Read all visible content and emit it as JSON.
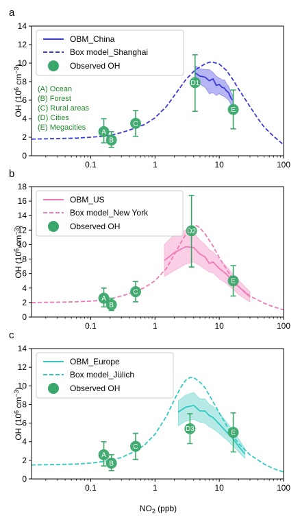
{
  "colors": {
    "china": "#3a3adc",
    "china_fill": "#9d9df0",
    "us": "#f07ab8",
    "us_fill": "#f8bedb",
    "europe": "#2ec9c1",
    "europe_fill": "#9fe3df",
    "obs": "#3aa86a",
    "ann_green": "#1e8a28"
  },
  "xlabel_main": "NO",
  "xlabel_sub": "2",
  "xlabel_unit": " (ppb)",
  "ylabel_main": "OH (10",
  "ylabel_exp1": "6",
  "ylabel_mid": " cm",
  "ylabel_exp2": "−3",
  "ylabel_end": ")",
  "chart_data": [
    {
      "type": "line",
      "panel": "a",
      "xscale": "log",
      "xlim": [
        0.012,
        100
      ],
      "ylim": [
        0,
        14
      ],
      "yticks": [
        0,
        2,
        4,
        6,
        8,
        10,
        12,
        14
      ],
      "xticks": [
        0.1,
        1,
        10,
        100
      ],
      "xtick_labels": [
        "0.1",
        "1",
        "10",
        "100"
      ],
      "legend": {
        "placement": "top-left",
        "entries": [
          "OBM_China",
          "Box model_Shanghai",
          "Observed OH"
        ]
      },
      "annotation_lines": [
        "(A) Ocean",
        "(B) Forest",
        "(C) Rural areas",
        "(D) Cities",
        "(E) Megacities"
      ],
      "obm": {
        "name": "OBM_China",
        "x": [
          4.3,
          5,
          6,
          7,
          8,
          9,
          10,
          11,
          12,
          13,
          14,
          15,
          16
        ],
        "y": [
          8.9,
          8.6,
          8.5,
          8.1,
          8.3,
          7.6,
          7.7,
          7.4,
          7.3,
          7.0,
          6.8,
          6.3,
          6.0
        ],
        "y_low": [
          8.1,
          7.7,
          7.4,
          6.7,
          6.8,
          6.5,
          6.7,
          6.5,
          6.4,
          6.2,
          6.0,
          5.6,
          5.4
        ],
        "y_high": [
          9.7,
          9.4,
          9.3,
          9.3,
          9.0,
          8.6,
          8.4,
          8.2,
          8.2,
          7.8,
          7.5,
          7.0,
          6.6
        ]
      },
      "box_model": {
        "name": "Box model_Shanghai",
        "x": [
          0.012,
          0.03,
          0.06,
          0.1,
          0.15,
          0.2,
          0.3,
          0.5,
          0.7,
          1,
          1.5,
          2,
          3,
          4,
          5,
          6,
          7,
          8,
          10,
          13,
          16,
          20,
          30,
          40,
          50,
          70,
          100
        ],
        "y": [
          1.8,
          1.85,
          1.9,
          2.0,
          2.1,
          2.2,
          2.5,
          3.0,
          3.4,
          4.1,
          5.3,
          6.5,
          8.2,
          9.1,
          9.6,
          9.9,
          10.1,
          10.1,
          9.9,
          9.2,
          8.3,
          7.2,
          5.3,
          4.0,
          3.1,
          2.1,
          1.2
        ]
      },
      "observed": [
        {
          "label": "A",
          "x": 0.16,
          "y": 2.6,
          "err_low": 1.4,
          "err_high": 4.0
        },
        {
          "label": "B",
          "x": 0.21,
          "y": 1.7,
          "err_low": 0.9,
          "err_high": 2.6
        },
        {
          "label": "C",
          "x": 0.5,
          "y": 3.5,
          "err_low": 2.1,
          "err_high": 4.9
        },
        {
          "label": "D1",
          "x": 4.2,
          "y": 7.9,
          "err_low": 4.8,
          "err_high": 10.9
        },
        {
          "label": "E",
          "x": 16.5,
          "y": 5.0,
          "err_low": 2.9,
          "err_high": 7.1
        }
      ]
    },
    {
      "type": "line",
      "panel": "b",
      "xscale": "log",
      "xlim": [
        0.012,
        100
      ],
      "ylim": [
        0,
        18
      ],
      "yticks": [
        0,
        2,
        4,
        6,
        8,
        10,
        12,
        14,
        16,
        18
      ],
      "xticks": [
        0.1,
        1,
        10,
        100
      ],
      "xtick_labels": [
        "0.1",
        "1",
        "10",
        "100"
      ],
      "legend": {
        "placement": "top-left",
        "entries": [
          "OBM_US",
          "Box model_New York",
          "Observed OH"
        ]
      },
      "obm": {
        "name": "OBM_US",
        "x": [
          1.4,
          2,
          3,
          4,
          5,
          6,
          7,
          8,
          10,
          13,
          16,
          20,
          25,
          30
        ],
        "y": [
          7.8,
          8.9,
          9.7,
          9.6,
          8.7,
          8.3,
          7.4,
          7.6,
          6.7,
          5.9,
          5.0,
          4.2,
          3.4,
          2.8
        ],
        "y_low": [
          5.6,
          6.4,
          7.3,
          7.6,
          7.1,
          6.6,
          6.2,
          6.1,
          5.3,
          4.6,
          3.9,
          3.1,
          2.5,
          2.1
        ],
        "y_high": [
          10.0,
          11.4,
          12.0,
          11.6,
          10.6,
          10.0,
          9.3,
          9.0,
          8.0,
          7.0,
          6.0,
          5.1,
          4.2,
          3.5
        ]
      },
      "box_model": {
        "name": "Box model_New York",
        "x": [
          0.012,
          0.03,
          0.06,
          0.1,
          0.15,
          0.2,
          0.3,
          0.5,
          0.7,
          1,
          1.5,
          2,
          2.5,
          3,
          3.5,
          4,
          4.5,
          5,
          6,
          8,
          10,
          15,
          20,
          30,
          50,
          70,
          100
        ],
        "y": [
          2.0,
          2.05,
          2.1,
          2.2,
          2.3,
          2.5,
          2.9,
          3.5,
          4.1,
          5.0,
          6.7,
          8.6,
          10.2,
          11.4,
          12.2,
          12.6,
          12.6,
          12.3,
          11.5,
          9.8,
          8.2,
          5.7,
          4.2,
          2.9,
          1.9,
          1.4,
          1.0
        ]
      },
      "observed": [
        {
          "label": "A",
          "x": 0.16,
          "y": 2.6,
          "err_low": 1.4,
          "err_high": 4.0
        },
        {
          "label": "B",
          "x": 0.21,
          "y": 1.7,
          "err_low": 0.9,
          "err_high": 2.6
        },
        {
          "label": "C",
          "x": 0.5,
          "y": 3.5,
          "err_low": 2.1,
          "err_high": 4.9
        },
        {
          "label": "D2",
          "x": 3.7,
          "y": 11.9,
          "err_low": 6.9,
          "err_high": 16.8
        },
        {
          "label": "E",
          "x": 16.5,
          "y": 5.0,
          "err_low": 2.9,
          "err_high": 7.1
        }
      ]
    },
    {
      "type": "line",
      "panel": "c",
      "xscale": "log",
      "xlim": [
        0.012,
        100
      ],
      "ylim": [
        0,
        14
      ],
      "yticks": [
        0,
        2,
        4,
        6,
        8,
        10,
        12,
        14
      ],
      "xticks": [
        0.1,
        1,
        10,
        100
      ],
      "xtick_labels": [
        "0.1",
        "1",
        "10",
        "100"
      ],
      "legend": {
        "placement": "top-left",
        "entries": [
          "OBM_Europe",
          "Box model_Jülich",
          "Observed OH"
        ]
      },
      "obm": {
        "name": "OBM_Europe",
        "x": [
          2.3,
          3,
          4,
          5,
          6,
          7,
          8,
          10,
          12,
          14,
          16,
          20,
          25
        ],
        "y": [
          7.2,
          7.7,
          7.9,
          7.3,
          7.3,
          6.8,
          6.6,
          5.9,
          5.3,
          4.8,
          4.4,
          3.5,
          2.7
        ],
        "y_low": [
          5.7,
          6.2,
          6.4,
          6.1,
          6.0,
          5.6,
          5.4,
          4.9,
          4.4,
          4.0,
          3.6,
          2.9,
          2.2
        ],
        "y_high": [
          8.4,
          9.0,
          9.3,
          8.6,
          8.6,
          8.0,
          7.8,
          7.1,
          6.4,
          5.8,
          5.3,
          4.3,
          3.3
        ]
      },
      "box_model": {
        "name": "Box model_Jülich",
        "x": [
          0.012,
          0.03,
          0.06,
          0.1,
          0.15,
          0.2,
          0.3,
          0.5,
          0.7,
          1,
          1.5,
          2,
          2.5,
          3,
          3.5,
          4,
          5,
          6,
          8,
          10,
          15,
          20,
          30,
          50,
          70,
          100
        ],
        "y": [
          1.5,
          1.55,
          1.6,
          1.7,
          1.85,
          2.0,
          2.3,
          3.0,
          3.7,
          4.8,
          6.7,
          8.5,
          9.8,
          10.6,
          10.9,
          10.9,
          10.4,
          9.8,
          8.3,
          7.1,
          5.0,
          3.8,
          2.6,
          1.6,
          1.1,
          0.75
        ]
      },
      "observed": [
        {
          "label": "A",
          "x": 0.16,
          "y": 2.6,
          "err_low": 1.4,
          "err_high": 4.0
        },
        {
          "label": "B",
          "x": 0.21,
          "y": 1.7,
          "err_low": 0.9,
          "err_high": 2.6
        },
        {
          "label": "C",
          "x": 0.5,
          "y": 3.5,
          "err_low": 2.1,
          "err_high": 4.9
        },
        {
          "label": "D3",
          "x": 3.5,
          "y": 5.4,
          "err_low": 3.8,
          "err_high": 7.0
        },
        {
          "label": "E",
          "x": 16.5,
          "y": 5.0,
          "err_low": 2.9,
          "err_high": 7.1
        }
      ]
    }
  ]
}
